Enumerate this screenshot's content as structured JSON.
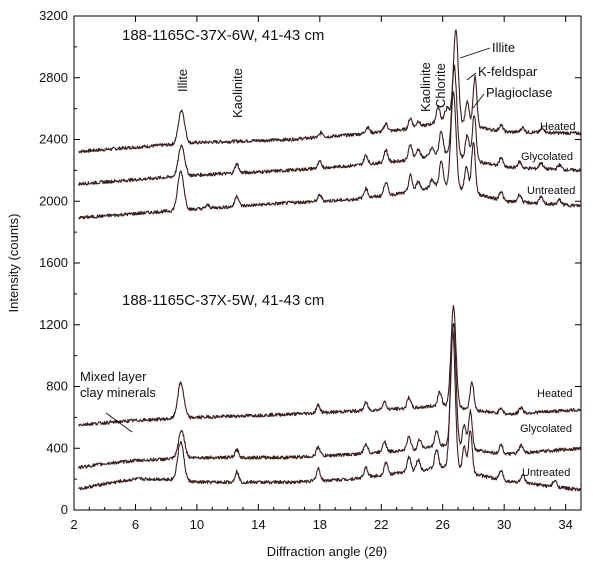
{
  "chart_data": {
    "type": "line",
    "xlabel": "Diffraction angle (2θ)",
    "ylabel": "Intensity (counts)",
    "xlim": [
      2,
      35
    ],
    "ylim": [
      0,
      3200
    ],
    "x_ticks": [
      "2",
      "6",
      "10",
      "14",
      "18",
      "22",
      "26",
      "30",
      "34"
    ],
    "y_ticks": [
      "0",
      "400",
      "800",
      "1200",
      "1600",
      "2000",
      "2400",
      "2800",
      "3200"
    ],
    "grid": false,
    "panels": [
      {
        "sample": "188-1165C-37X-6W, 41-43 cm",
        "series": [
          {
            "name": "Heated",
            "baseline": [
              [
                2,
                2320
              ],
              [
                6,
                2350
              ],
              [
                10,
                2380
              ],
              [
                16,
                2400
              ],
              [
                20,
                2430
              ],
              [
                24,
                2470
              ],
              [
                26,
                2520
              ],
              [
                30,
                2450
              ],
              [
                35,
                2440
              ]
            ],
            "peaks": [
              [
                9.0,
                220
              ],
              [
                18.1,
                30
              ],
              [
                21.1,
                40
              ],
              [
                22.3,
                50
              ],
              [
                23.9,
                70
              ],
              [
                24.4,
                40
              ],
              [
                25.7,
                100
              ],
              [
                26.3,
                90
              ],
              [
                26.85,
                600
              ],
              [
                27.6,
                160
              ],
              [
                28.1,
                320
              ],
              [
                29.8,
                40
              ],
              [
                31.2,
                30
              ],
              [
                32.5,
                30
              ]
            ]
          },
          {
            "name": "Glycolated",
            "baseline": [
              [
                2,
                2110
              ],
              [
                6,
                2140
              ],
              [
                10,
                2170
              ],
              [
                16,
                2200
              ],
              [
                20,
                2230
              ],
              [
                24,
                2270
              ],
              [
                26,
                2310
              ],
              [
                30,
                2220
              ],
              [
                35,
                2200
              ]
            ],
            "peaks": [
              [
                9.0,
                200
              ],
              [
                12.6,
                60
              ],
              [
                18.0,
                40
              ],
              [
                21.0,
                60
              ],
              [
                22.3,
                80
              ],
              [
                23.9,
                100
              ],
              [
                24.4,
                60
              ],
              [
                25.3,
                50
              ],
              [
                25.9,
                150
              ],
              [
                26.75,
                580
              ],
              [
                27.6,
                160
              ],
              [
                28.05,
                300
              ],
              [
                29.8,
                60
              ],
              [
                31.0,
                40
              ],
              [
                32.4,
                40
              ],
              [
                33.6,
                30
              ]
            ]
          },
          {
            "name": "Untreated",
            "baseline": [
              [
                2,
                1890
              ],
              [
                6,
                1920
              ],
              [
                10,
                1950
              ],
              [
                16,
                1990
              ],
              [
                20,
                2010
              ],
              [
                24,
                2060
              ],
              [
                26,
                2110
              ],
              [
                30,
                2000
              ],
              [
                35,
                1970
              ]
            ],
            "peaks": [
              [
                8.95,
                250
              ],
              [
                10.7,
                20
              ],
              [
                12.6,
                70
              ],
              [
                18.0,
                40
              ],
              [
                21.0,
                60
              ],
              [
                22.3,
                90
              ],
              [
                23.9,
                110
              ],
              [
                24.4,
                60
              ],
              [
                25.3,
                50
              ],
              [
                25.9,
                150
              ],
              [
                26.7,
                620
              ],
              [
                27.55,
                160
              ],
              [
                28.0,
                330
              ],
              [
                29.8,
                60
              ],
              [
                31.0,
                50
              ],
              [
                32.4,
                40
              ],
              [
                33.6,
                30
              ]
            ]
          }
        ]
      },
      {
        "sample": "188-1165C-37X-5W, 41-43 cm",
        "series": [
          {
            "name": "Heated",
            "baseline": [
              [
                2,
                550
              ],
              [
                6,
                580
              ],
              [
                10,
                600
              ],
              [
                16,
                620
              ],
              [
                20,
                640
              ],
              [
                24,
                660
              ],
              [
                26,
                680
              ],
              [
                30,
                620
              ],
              [
                35,
                650
              ]
            ],
            "peaks": [
              [
                8.95,
                230
              ],
              [
                17.9,
                50
              ],
              [
                21.0,
                50
              ],
              [
                22.2,
                50
              ],
              [
                23.8,
                70
              ],
              [
                25.8,
                90
              ],
              [
                26.7,
                650
              ],
              [
                27.9,
                180
              ],
              [
                29.8,
                40
              ],
              [
                31.1,
                40
              ]
            ]
          },
          {
            "name": "Glycolated",
            "baseline": [
              [
                2,
                270
              ],
              [
                4,
                300
              ],
              [
                6,
                320
              ],
              [
                8,
                330
              ],
              [
                10,
                340
              ],
              [
                16,
                340
              ],
              [
                20,
                360
              ],
              [
                24,
                390
              ],
              [
                26,
                420
              ],
              [
                30,
                360
              ],
              [
                35,
                400
              ]
            ],
            "peaks": [
              [
                9.0,
                180
              ],
              [
                12.6,
                50
              ],
              [
                17.9,
                60
              ],
              [
                21.0,
                60
              ],
              [
                22.2,
                70
              ],
              [
                23.8,
                90
              ],
              [
                24.5,
                60
              ],
              [
                25.6,
                100
              ],
              [
                26.7,
                800
              ],
              [
                27.4,
                150
              ],
              [
                27.8,
                250
              ],
              [
                29.8,
                60
              ],
              [
                31.1,
                50
              ]
            ]
          },
          {
            "name": "Untreated",
            "baseline": [
              [
                2,
                130
              ],
              [
                4,
                170
              ],
              [
                6,
                200
              ],
              [
                8,
                200
              ],
              [
                10,
                180
              ],
              [
                16,
                180
              ],
              [
                20,
                200
              ],
              [
                24,
                250
              ],
              [
                26,
                280
              ],
              [
                30,
                190
              ],
              [
                35,
                130
              ]
            ],
            "peaks": [
              [
                8.95,
                250
              ],
              [
                12.6,
                70
              ],
              [
                17.9,
                80
              ],
              [
                21.0,
                60
              ],
              [
                22.3,
                80
              ],
              [
                23.8,
                100
              ],
              [
                24.4,
                70
              ],
              [
                25.6,
                120
              ],
              [
                26.65,
                900
              ],
              [
                27.4,
                160
              ],
              [
                27.8,
                280
              ],
              [
                29.8,
                60
              ],
              [
                31.2,
                50
              ],
              [
                33.3,
                40
              ]
            ]
          }
        ]
      }
    ],
    "peak_labels": [
      "Illite",
      "Kaolinite",
      "Kaolinite",
      "Chlorite",
      "Illite",
      "K-feldspar",
      "Plagioclase"
    ],
    "annotation": "Mixed layer\nclay minerals"
  }
}
